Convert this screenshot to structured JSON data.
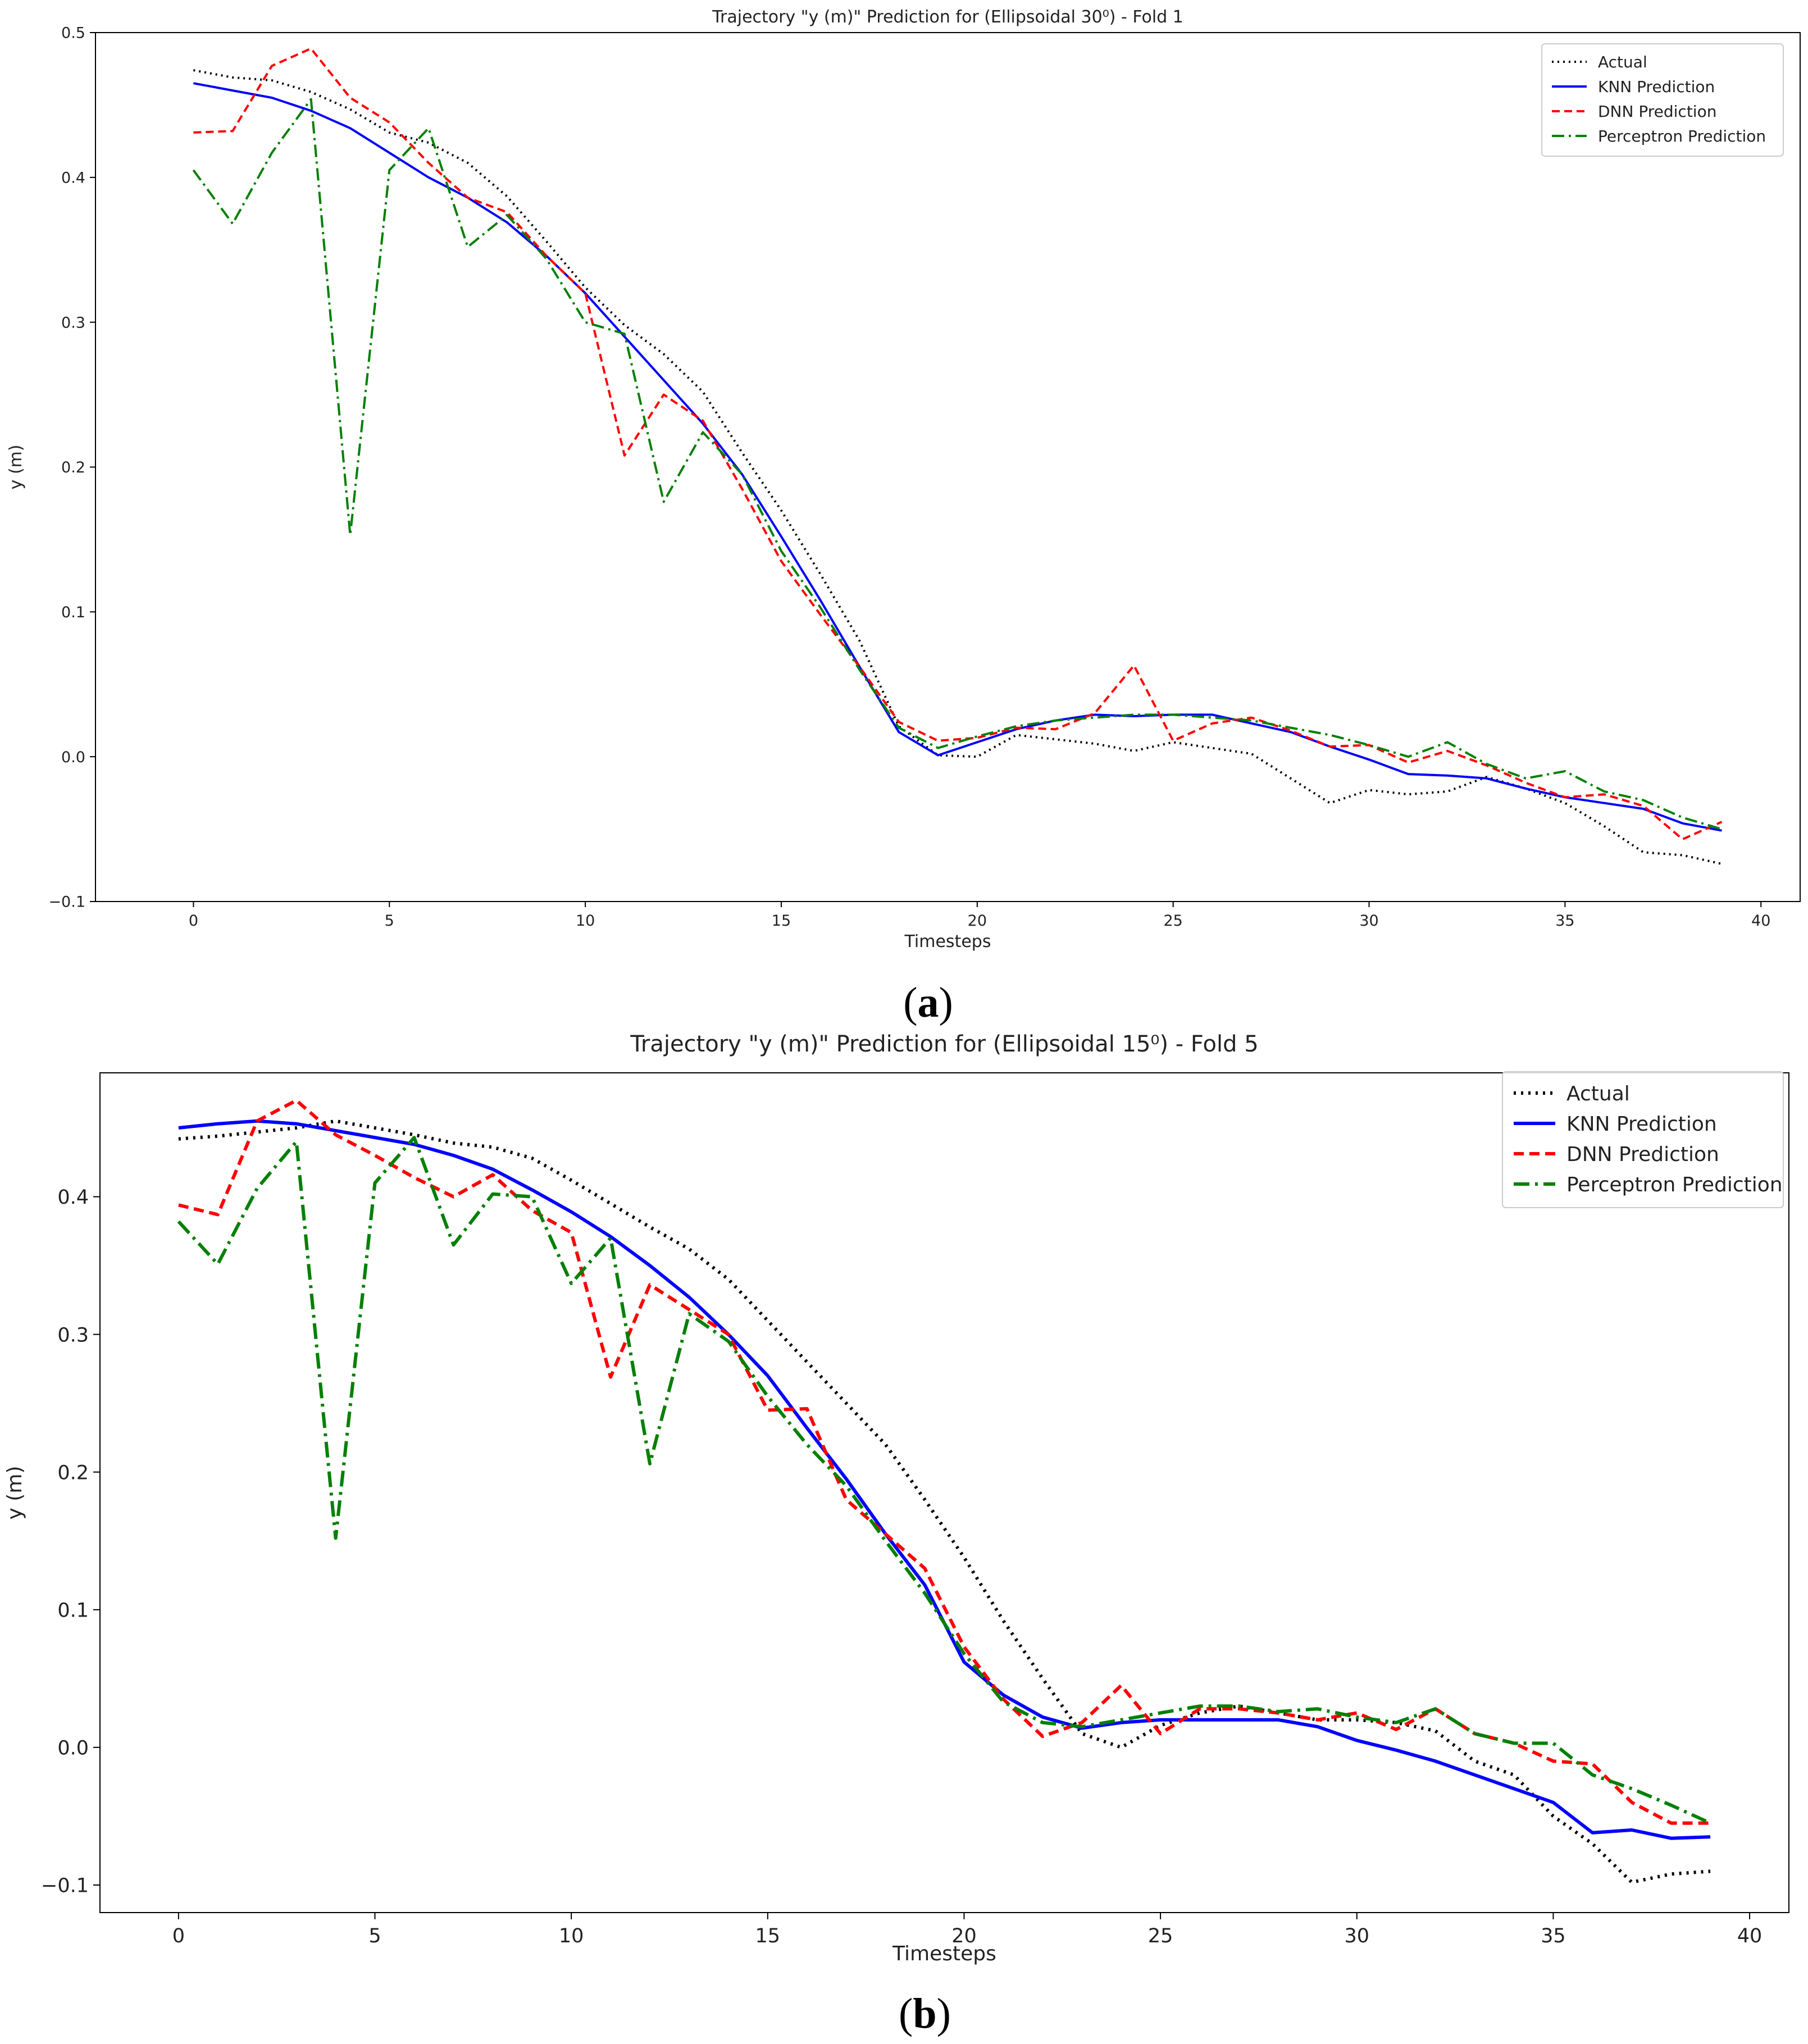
{
  "chart_data": [
    {
      "type": "line",
      "title": "Trajectory \"y (m)\" Prediction for (Ellipsoidal 30⁰) - Fold 1",
      "xlabel": "Timesteps",
      "ylabel": "y (m)",
      "xlim": [
        -2.5,
        41
      ],
      "ylim": [
        -0.1,
        0.5
      ],
      "xticks": [
        0,
        5,
        10,
        15,
        20,
        25,
        30,
        35,
        40
      ],
      "yticks": [
        -0.1,
        0.0,
        0.1,
        0.2,
        0.3,
        0.4,
        0.5
      ],
      "ytick_labels": [
        "−0.1",
        "0.0",
        "0.1",
        "0.2",
        "0.3",
        "0.4",
        "0.5"
      ],
      "legend_position": "top-right",
      "caption": "(a)",
      "x": [
        0,
        1,
        2,
        3,
        4,
        5,
        6,
        7,
        8,
        9,
        10,
        11,
        12,
        13,
        14,
        15,
        16,
        17,
        18,
        19,
        20,
        21,
        22,
        23,
        24,
        25,
        26,
        27,
        28,
        29,
        30,
        31,
        32,
        33,
        34,
        35,
        36,
        37,
        38,
        39
      ],
      "series": [
        {
          "name": "Actual",
          "color": "#000000",
          "style": "dotted",
          "values": [
            0.474,
            0.469,
            0.467,
            0.459,
            0.447,
            0.431,
            0.424,
            0.41,
            0.387,
            0.356,
            0.324,
            0.298,
            0.278,
            0.252,
            0.21,
            0.17,
            0.126,
            0.08,
            0.021,
            0.001,
            0.0,
            0.015,
            0.012,
            0.009,
            0.004,
            0.01,
            0.006,
            0.002,
            -0.015,
            -0.032,
            -0.023,
            -0.026,
            -0.024,
            -0.014,
            -0.022,
            -0.032,
            -0.048,
            -0.066,
            -0.068,
            -0.074
          ]
        },
        {
          "name": "KNN Prediction",
          "color": "#0000ff",
          "style": "solid",
          "values": [
            0.465,
            0.46,
            0.455,
            0.446,
            0.434,
            0.417,
            0.4,
            0.386,
            0.369,
            0.346,
            0.32,
            0.29,
            0.26,
            0.23,
            0.195,
            0.152,
            0.108,
            0.062,
            0.017,
            0.001,
            0.01,
            0.019,
            0.025,
            0.029,
            0.028,
            0.029,
            0.029,
            0.023,
            0.017,
            0.007,
            -0.002,
            -0.012,
            -0.013,
            -0.015,
            -0.022,
            -0.028,
            -0.032,
            -0.036,
            -0.046,
            -0.051
          ]
        },
        {
          "name": "DNN Prediction",
          "color": "#ff0000",
          "style": "dashed",
          "values": [
            0.431,
            0.432,
            0.477,
            0.489,
            0.455,
            0.438,
            0.41,
            0.386,
            0.376,
            0.346,
            0.32,
            0.208,
            0.25,
            0.232,
            0.185,
            0.135,
            0.098,
            0.062,
            0.024,
            0.011,
            0.013,
            0.02,
            0.019,
            0.03,
            0.063,
            0.011,
            0.023,
            0.027,
            0.018,
            0.007,
            0.008,
            -0.004,
            0.004,
            -0.006,
            -0.018,
            -0.028,
            -0.026,
            -0.034,
            -0.057,
            -0.045
          ]
        },
        {
          "name": "Perceptron Prediction",
          "color": "#008000",
          "style": "dashdot",
          "values": [
            0.405,
            0.368,
            0.417,
            0.454,
            0.153,
            0.405,
            0.434,
            0.352,
            0.374,
            0.344,
            0.3,
            0.292,
            0.176,
            0.224,
            0.195,
            0.142,
            0.103,
            0.06,
            0.02,
            0.006,
            0.014,
            0.021,
            0.025,
            0.027,
            0.029,
            0.029,
            0.027,
            0.025,
            0.02,
            0.015,
            0.008,
            0.0,
            0.01,
            -0.005,
            -0.015,
            -0.01,
            -0.024,
            -0.03,
            -0.042,
            -0.05
          ]
        }
      ]
    },
    {
      "type": "line",
      "title": "Trajectory \"y (m)\" Prediction for (Ellipsoidal 15⁰) - Fold 5",
      "xlabel": "Timesteps",
      "ylabel": "y (m)",
      "xlim": [
        -2,
        41
      ],
      "ylim": [
        -0.12,
        0.49
      ],
      "xticks": [
        0,
        5,
        10,
        15,
        20,
        25,
        30,
        35,
        40
      ],
      "yticks": [
        -0.1,
        0.0,
        0.1,
        0.2,
        0.3,
        0.4
      ],
      "ytick_labels": [
        "−0.1",
        "0.0",
        "0.1",
        "0.2",
        "0.3",
        "0.4"
      ],
      "legend_position": "top-right",
      "caption": "(b)",
      "x": [
        0,
        1,
        2,
        3,
        4,
        5,
        6,
        7,
        8,
        9,
        10,
        11,
        12,
        13,
        14,
        15,
        16,
        17,
        18,
        19,
        20,
        21,
        22,
        23,
        24,
        25,
        26,
        27,
        28,
        29,
        30,
        31,
        32,
        33,
        34,
        35,
        36,
        37,
        38,
        39
      ],
      "series": [
        {
          "name": "Actual",
          "color": "#000000",
          "style": "dotted",
          "values": [
            0.442,
            0.444,
            0.447,
            0.45,
            0.455,
            0.45,
            0.445,
            0.439,
            0.436,
            0.428,
            0.412,
            0.395,
            0.378,
            0.362,
            0.34,
            0.31,
            0.28,
            0.25,
            0.22,
            0.18,
            0.138,
            0.092,
            0.05,
            0.01,
            0.0,
            0.016,
            0.025,
            0.03,
            0.025,
            0.02,
            0.02,
            0.018,
            0.012,
            -0.01,
            -0.02,
            -0.05,
            -0.07,
            -0.098,
            -0.092,
            -0.09
          ]
        },
        {
          "name": "KNN Prediction",
          "color": "#0000ff",
          "style": "solid",
          "values": [
            0.45,
            0.453,
            0.455,
            0.453,
            0.448,
            0.443,
            0.438,
            0.43,
            0.42,
            0.405,
            0.389,
            0.371,
            0.35,
            0.327,
            0.3,
            0.27,
            0.232,
            0.195,
            0.155,
            0.118,
            0.062,
            0.038,
            0.022,
            0.014,
            0.018,
            0.02,
            0.02,
            0.02,
            0.02,
            0.015,
            0.005,
            -0.002,
            -0.01,
            -0.02,
            -0.03,
            -0.04,
            -0.062,
            -0.06,
            -0.066,
            -0.065
          ]
        },
        {
          "name": "DNN Prediction",
          "color": "#ff0000",
          "style": "dashed",
          "values": [
            0.394,
            0.387,
            0.455,
            0.47,
            0.445,
            0.43,
            0.414,
            0.4,
            0.416,
            0.39,
            0.374,
            0.269,
            0.336,
            0.318,
            0.3,
            0.245,
            0.246,
            0.18,
            0.155,
            0.13,
            0.073,
            0.035,
            0.008,
            0.018,
            0.045,
            0.01,
            0.028,
            0.028,
            0.025,
            0.02,
            0.025,
            0.013,
            0.028,
            0.01,
            0.003,
            -0.01,
            -0.012,
            -0.04,
            -0.055,
            -0.055
          ]
        },
        {
          "name": "Perceptron Prediction",
          "color": "#008000",
          "style": "dashdot",
          "values": [
            0.382,
            0.351,
            0.406,
            0.44,
            0.152,
            0.41,
            0.443,
            0.365,
            0.402,
            0.4,
            0.337,
            0.37,
            0.206,
            0.315,
            0.295,
            0.255,
            0.22,
            0.19,
            0.15,
            0.112,
            0.068,
            0.033,
            0.018,
            0.015,
            0.02,
            0.025,
            0.03,
            0.03,
            0.026,
            0.028,
            0.022,
            0.018,
            0.028,
            0.01,
            0.003,
            0.003,
            -0.02,
            -0.03,
            -0.042,
            -0.055
          ]
        }
      ]
    }
  ]
}
